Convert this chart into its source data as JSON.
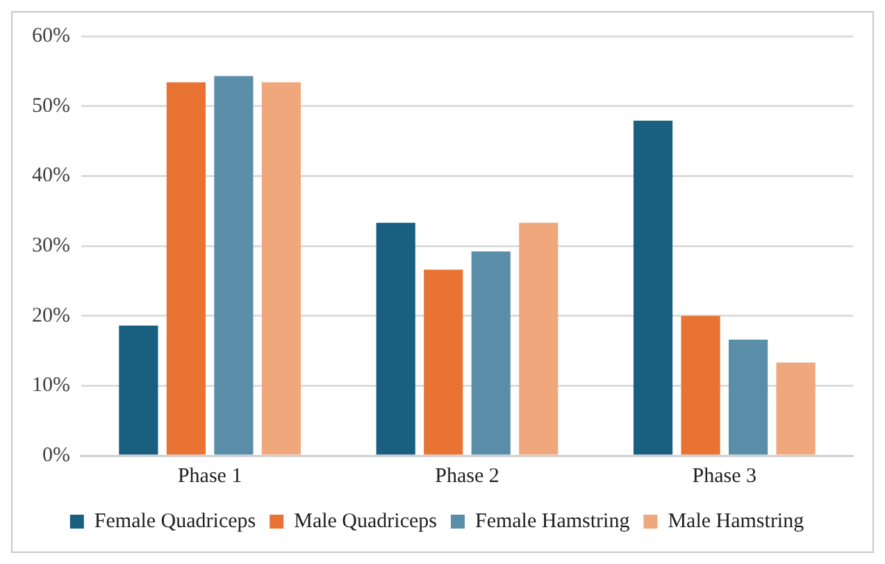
{
  "chart_data": {
    "type": "bar",
    "categories": [
      "Phase 1",
      "Phase 2",
      "Phase 3"
    ],
    "series": [
      {
        "name": "Female Quadriceps",
        "color": "#185f80",
        "values": [
          18.6,
          33.3,
          47.9
        ]
      },
      {
        "name": "Male Quadriceps",
        "color": "#e87332",
        "values": [
          53.4,
          26.6,
          20
        ]
      },
      {
        "name": "Female Hamstring",
        "color": "#5a8ea8",
        "values": [
          54.3,
          29.2,
          16.6
        ]
      },
      {
        "name": "Male Hamstring",
        "color": "#f0a77c",
        "values": [
          53.4,
          33.3,
          13.3
        ]
      }
    ],
    "ylim": [
      0,
      60
    ],
    "yticks": [
      {
        "value": 0,
        "label": "0%"
      },
      {
        "value": 10,
        "label": "10%"
      },
      {
        "value": 20,
        "label": "20%"
      },
      {
        "value": 30,
        "label": "30%"
      },
      {
        "value": 40,
        "label": "40%"
      },
      {
        "value": 50,
        "label": "50%"
      },
      {
        "value": 60,
        "label": "60%"
      }
    ],
    "grid": "y",
    "legend": "bottom"
  }
}
